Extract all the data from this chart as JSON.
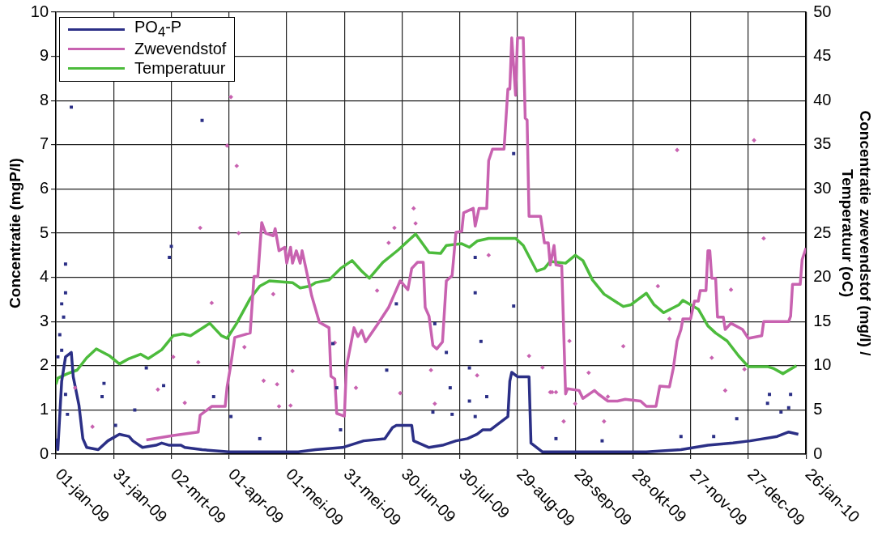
{
  "chart_data": {
    "type": "line",
    "ylabel": "Concentratie (mgP/l)",
    "y2label": "Concentratie zwevendstof (mg/l) /\nTemperatuur (oC)",
    "xlim": [
      "2009-01-01",
      "2010-01-26"
    ],
    "xticks": [
      {
        "value": "2009-01-01",
        "label": "01-jan-09"
      },
      {
        "value": "2009-01-31",
        "label": "31-jan-09"
      },
      {
        "value": "2009-03-02",
        "label": "02-mrt-09"
      },
      {
        "value": "2009-04-01",
        "label": "01-apr-09"
      },
      {
        "value": "2009-05-01",
        "label": "01-mei-09"
      },
      {
        "value": "2009-05-31",
        "label": "31-mei-09"
      },
      {
        "value": "2009-06-30",
        "label": "30-jun-09"
      },
      {
        "value": "2009-07-30",
        "label": "30-jul-09"
      },
      {
        "value": "2009-08-29",
        "label": "29-aug-09"
      },
      {
        "value": "2009-09-28",
        "label": "28-sep-09"
      },
      {
        "value": "2009-10-28",
        "label": "28-okt-09"
      },
      {
        "value": "2009-11-27",
        "label": "27-nov-09"
      },
      {
        "value": "2009-12-27",
        "label": "27-dec-09"
      },
      {
        "value": "2010-01-26",
        "label": "26-jan-10"
      }
    ],
    "ylim": [
      0,
      10
    ],
    "yticks": [
      0,
      1,
      2,
      3,
      4,
      5,
      6,
      7,
      8,
      9,
      10
    ],
    "y2lim": [
      0,
      50
    ],
    "y2ticks": [
      0,
      5,
      10,
      15,
      20,
      25,
      30,
      35,
      40,
      45,
      50
    ],
    "grid": true,
    "legend": "top left",
    "line_style": "solid",
    "series": [
      {
        "name": "PO$_{4}$-P",
        "type": "line",
        "color": "#2b2f86",
        "marker": "none",
        "x": [
          "2009-01-01",
          "2009-01-02",
          "2009-01-04",
          "2009-01-06",
          "2009-01-09",
          "2009-01-10",
          "2009-01-13",
          "2009-01-15",
          "2009-01-17",
          "2009-01-23",
          "2009-01-28",
          "2009-01-30",
          "2009-02-03",
          "2009-02-08",
          "2009-02-10",
          "2009-02-15",
          "2009-02-22",
          "2009-02-25",
          "2009-03-01",
          "2009-03-07",
          "2009-03-09",
          "2009-03-18",
          "2009-04-01",
          "2009-04-19",
          "2009-05-07",
          "2009-05-16",
          "2009-05-30",
          "2009-06-10",
          "2009-06-21",
          "2009-06-25",
          "2009-06-27",
          "2009-06-30",
          "2009-07-05",
          "2009-07-06",
          "2009-07-14",
          "2009-07-21",
          "2009-07-28",
          "2009-08-03",
          "2009-08-08",
          "2009-08-11",
          "2009-08-15",
          "2009-08-24",
          "2009-08-25",
          "2009-08-26",
          "2009-08-29",
          "2009-09-04",
          "2009-09-05",
          "2009-09-11",
          "2009-09-29",
          "2009-10-17",
          "2009-11-04",
          "2009-11-22",
          "2009-12-06",
          "2009-12-19",
          "2009-12-28",
          "2010-01-11",
          "2010-01-17",
          "2010-01-22"
        ],
        "values": [
          0.35,
          0.1,
          1.65,
          2.2,
          2.3,
          1.75,
          1.1,
          0.35,
          0.15,
          0.1,
          0.3,
          0.35,
          0.45,
          0.4,
          0.3,
          0.15,
          0.2,
          0.25,
          0.2,
          0.2,
          0.15,
          0.1,
          0.05,
          0.05,
          0.05,
          0.1,
          0.15,
          0.3,
          0.35,
          0.6,
          0.65,
          0.65,
          0.65,
          0.3,
          0.15,
          0.2,
          0.3,
          0.35,
          0.45,
          0.55,
          0.55,
          0.85,
          1.65,
          1.85,
          1.75,
          1.75,
          0.25,
          0.05,
          0.05,
          0.05,
          0.05,
          0.1,
          0.2,
          0.25,
          0.3,
          0.4,
          0.5,
          0.45
        ]
      },
      {
        "name": "Zwevendstof",
        "type": "line",
        "axis": "y2",
        "color": "#c862b0",
        "marker": "none",
        "x": [
          "2009-02-17",
          "2009-03-03",
          "2009-03-16",
          "2009-03-17",
          "2009-03-23",
          "2009-03-30",
          "2009-03-31",
          "2009-04-02",
          "2009-04-04",
          "2009-04-12",
          "2009-04-14",
          "2009-04-16",
          "2009-04-18",
          "2009-04-20",
          "2009-04-24",
          "2009-04-25",
          "2009-04-27",
          "2009-04-30",
          "2009-05-01",
          "2009-05-03",
          "2009-05-04",
          "2009-05-06",
          "2009-05-08",
          "2009-05-09",
          "2009-05-11",
          "2009-05-14",
          "2009-05-18",
          "2009-05-23",
          "2009-05-24",
          "2009-05-26",
          "2009-05-27",
          "2009-05-31",
          "2009-06-01",
          "2009-06-05",
          "2009-06-07",
          "2009-06-09",
          "2009-06-11",
          "2009-06-17",
          "2009-06-23",
          "2009-06-26",
          "2009-06-29",
          "2009-07-03",
          "2009-07-05",
          "2009-07-08",
          "2009-07-11",
          "2009-07-12",
          "2009-07-14",
          "2009-07-16",
          "2009-07-18",
          "2009-07-21",
          "2009-07-23",
          "2009-07-26",
          "2009-07-28",
          "2009-07-31",
          "2009-08-01",
          "2009-08-06",
          "2009-08-07",
          "2009-08-09",
          "2009-08-13",
          "2009-08-14",
          "2009-08-16",
          "2009-08-22",
          "2009-08-24",
          "2009-08-25",
          "2009-08-26",
          "2009-08-28",
          "2009-08-29",
          "2009-09-01",
          "2009-09-02",
          "2009-09-03",
          "2009-09-04",
          "2009-09-10",
          "2009-09-12",
          "2009-09-14",
          "2009-09-15",
          "2009-09-17",
          "2009-09-18",
          "2009-09-21",
          "2009-09-23",
          "2009-09-24",
          "2009-09-30",
          "2009-10-02",
          "2009-10-08",
          "2009-10-10",
          "2009-10-15",
          "2009-10-20",
          "2009-10-24",
          "2009-11-01",
          "2009-11-04",
          "2009-11-09",
          "2009-11-11",
          "2009-11-16",
          "2009-11-18",
          "2009-11-20",
          "2009-11-22",
          "2009-11-23",
          "2009-11-27",
          "2009-11-29",
          "2009-12-01",
          "2009-12-02",
          "2009-12-05",
          "2009-12-06",
          "2009-12-07",
          "2009-12-08",
          "2009-12-10",
          "2009-12-11",
          "2009-12-14",
          "2009-12-15",
          "2009-12-18",
          "2009-12-24",
          "2009-12-27",
          "2010-01-03",
          "2010-01-04",
          "2010-01-17",
          "2010-01-18",
          "2010-01-19",
          "2010-01-23",
          "2010-01-24",
          "2010-01-26"
        ],
        "values": [
          1.6,
          2.1,
          2.5,
          4.4,
          5.4,
          5.4,
          7.6,
          10.2,
          13.2,
          13.7,
          20.1,
          20.1,
          26.2,
          25,
          24.7,
          25.5,
          23,
          23.4,
          21.6,
          23.4,
          21.6,
          23,
          21.6,
          23,
          21,
          17.9,
          14.9,
          14.3,
          8.8,
          8.5,
          4.6,
          4.3,
          9.8,
          14.3,
          13.3,
          14,
          12.7,
          14.6,
          16.6,
          18.1,
          19.6,
          18.6,
          21,
          21.7,
          21.7,
          16.6,
          15.6,
          12.3,
          11.9,
          12.7,
          19.6,
          20.2,
          25.1,
          25.2,
          27.3,
          27.8,
          25.8,
          27.8,
          27.8,
          33.2,
          34.5,
          34.5,
          41.3,
          41.3,
          47.1,
          40.6,
          47.1,
          47.1,
          38,
          37.8,
          26.9,
          26.9,
          23.9,
          23.9,
          21.4,
          23.6,
          21.4,
          21.3,
          6.8,
          7.4,
          7.2,
          6.3,
          7.2,
          6.8,
          6,
          6,
          6.2,
          6,
          5.4,
          5.4,
          7.7,
          7.6,
          9.7,
          12.8,
          14.1,
          15.3,
          15.3,
          17.3,
          17.3,
          18.5,
          18.5,
          23,
          23,
          19.9,
          19.9,
          15.5,
          15.5,
          14.1,
          14.8,
          14.1,
          13.1,
          13.4,
          15,
          15,
          15.6,
          19.2,
          19.2,
          22,
          23.3
        ]
      },
      {
        "name": "Temperatuur",
        "type": "line",
        "axis": "y2",
        "color": "#4cbb3c",
        "marker": "none",
        "x": [
          "2009-01-01",
          "2009-01-02",
          "2009-01-07",
          "2009-01-12",
          "2009-01-17",
          "2009-01-22",
          "2009-01-29",
          "2009-02-03",
          "2009-02-08",
          "2009-02-14",
          "2009-02-18",
          "2009-02-25",
          "2009-03-03",
          "2009-03-08",
          "2009-03-12",
          "2009-03-22",
          "2009-03-28",
          "2009-03-31",
          "2009-04-05",
          "2009-04-12",
          "2009-04-17",
          "2009-04-22",
          "2009-05-04",
          "2009-05-08",
          "2009-05-13",
          "2009-05-16",
          "2009-05-23",
          "2009-05-29",
          "2009-06-04",
          "2009-06-09",
          "2009-06-13",
          "2009-06-20",
          "2009-06-28",
          "2009-07-07",
          "2009-07-14",
          "2009-07-20",
          "2009-07-23",
          "2009-07-31",
          "2009-08-04",
          "2009-08-08",
          "2009-08-14",
          "2009-08-28",
          "2009-09-01",
          "2009-09-08",
          "2009-09-12",
          "2009-09-15",
          "2009-09-23",
          "2009-09-28",
          "2009-10-02",
          "2009-10-07",
          "2009-10-13",
          "2009-10-23",
          "2009-10-27",
          "2009-11-04",
          "2009-11-08",
          "2009-11-13",
          "2009-11-21",
          "2009-11-23",
          "2009-12-01",
          "2009-12-06",
          "2009-12-10",
          "2009-12-16",
          "2009-12-22",
          "2009-12-27",
          "2010-01-06",
          "2010-01-09",
          "2010-01-14",
          "2010-01-21"
        ],
        "values": [
          7.9,
          8.6,
          9.1,
          9.5,
          10.9,
          11.9,
          11.1,
          10.2,
          10.8,
          11.3,
          10.8,
          11.8,
          13.4,
          13.6,
          13.4,
          14.8,
          13.4,
          13.1,
          14.8,
          17.6,
          19,
          19.6,
          19.4,
          18.8,
          19,
          19.4,
          19.7,
          21,
          21.9,
          20.7,
          19.9,
          21.7,
          23.1,
          24.9,
          22.8,
          22.7,
          23.6,
          23.8,
          23.4,
          24.1,
          24.4,
          24.4,
          23.6,
          20.7,
          21,
          21.8,
          21.6,
          22.5,
          21.9,
          19.7,
          18.1,
          16.7,
          16.9,
          18.2,
          16.9,
          16,
          16.9,
          17.4,
          16.4,
          14.5,
          13.7,
          12.8,
          11.1,
          9.9,
          9.9,
          9.7,
          9.1,
          10
        ]
      },
      {
        "type": "scatter",
        "color": "#2b2f86",
        "marker": "square",
        "x": [
          "2009-01-09",
          "2009-03-18",
          "2009-03-02",
          "2009-03-01",
          "2009-01-06",
          "2009-01-06",
          "2009-01-04",
          "2009-01-05",
          "2009-01-03",
          "2009-01-04",
          "2009-01-02",
          "2009-01-06",
          "2009-01-07",
          "2009-01-26",
          "2009-01-25",
          "2009-02-17",
          "2009-02-26",
          "2009-02-11",
          "2009-02-01",
          "2009-03-24",
          "2009-04-02",
          "2009-04-17",
          "2009-08-27",
          "2009-06-27",
          "2009-07-17",
          "2009-07-23",
          "2009-08-07",
          "2009-08-27",
          "2009-08-07",
          "2009-08-10",
          "2009-05-25",
          "2009-06-22",
          "2009-08-04",
          "2009-07-25",
          "2009-08-04",
          "2009-08-13",
          "2009-07-16",
          "2009-07-26",
          "2009-08-07",
          "2009-05-29",
          "2009-05-27",
          "2010-01-07",
          "2010-01-18",
          "2010-01-17",
          "2010-01-06",
          "2010-01-13",
          "2009-12-21",
          "2009-11-22",
          "2009-12-09",
          "2009-09-18",
          "2009-10-12"
        ],
        "values": [
          7.85,
          7.55,
          4.7,
          4.45,
          4.3,
          3.65,
          3.4,
          3.1,
          2.7,
          2.35,
          2.2,
          1.35,
          0.9,
          1.6,
          1.3,
          1.95,
          1.55,
          1,
          0.65,
          1.3,
          0.85,
          0.35,
          6.8,
          3.4,
          2.95,
          2.3,
          3.65,
          3.35,
          4.45,
          2.55,
          2.5,
          1.9,
          1.95,
          1.5,
          1.2,
          1.3,
          0.95,
          0.9,
          0.85,
          0.55,
          1.5,
          1.35,
          1.35,
          1.05,
          1.15,
          0.95,
          0.8,
          0.4,
          0.4,
          0.35,
          0.3
        ]
      },
      {
        "type": "scatter",
        "axis": "y2",
        "color": "#c862b0",
        "marker": "diamond",
        "x": [
          "2009-04-02",
          "2009-03-31",
          "2009-04-05",
          "2009-03-17",
          "2009-04-06",
          "2009-03-23",
          "2009-04-24",
          "2009-03-03",
          "2009-03-16",
          "2009-04-09",
          "2009-04-19",
          "2009-04-26",
          "2009-05-04",
          "2009-02-23",
          "2009-03-09",
          "2009-04-27",
          "2009-05-03",
          "2009-01-20",
          "2009-01-11",
          "2009-07-06",
          "2009-07-07",
          "2009-06-26",
          "2009-06-23",
          "2009-06-17",
          "2009-08-14",
          "2009-09-04",
          "2009-09-11",
          "2009-05-26",
          "2009-07-15",
          "2009-08-08",
          "2009-06-06",
          "2009-06-29",
          "2009-07-17",
          "2009-09-16",
          "2009-11-20",
          "2009-12-30",
          "2010-01-04",
          "2009-11-10",
          "2009-12-18",
          "2009-11-16",
          "2009-09-25",
          "2009-10-23",
          "2009-12-08",
          "2009-12-25",
          "2009-10-05",
          "2009-12-15",
          "2009-09-15",
          "2009-09-18",
          "2009-09-28",
          "2009-10-15",
          "2009-09-22",
          "2009-10-13"
        ],
        "values": [
          40.4,
          34.9,
          32.6,
          25.6,
          25,
          17.1,
          18.1,
          11,
          10.4,
          12.1,
          8.3,
          7.9,
          9.4,
          7.3,
          5.8,
          5.4,
          5.5,
          3.1,
          7.5,
          27.8,
          26.1,
          25.6,
          23.9,
          18.5,
          22.5,
          11.1,
          9.8,
          12.6,
          9.5,
          8.9,
          7.5,
          6.9,
          5.7,
          7,
          34.4,
          35.5,
          24.4,
          19,
          18.6,
          15.3,
          12.8,
          12.2,
          10.9,
          9.6,
          9.2,
          7.2,
          7,
          7,
          5.7,
          6.5,
          3.7,
          3.7
        ]
      }
    ]
  }
}
